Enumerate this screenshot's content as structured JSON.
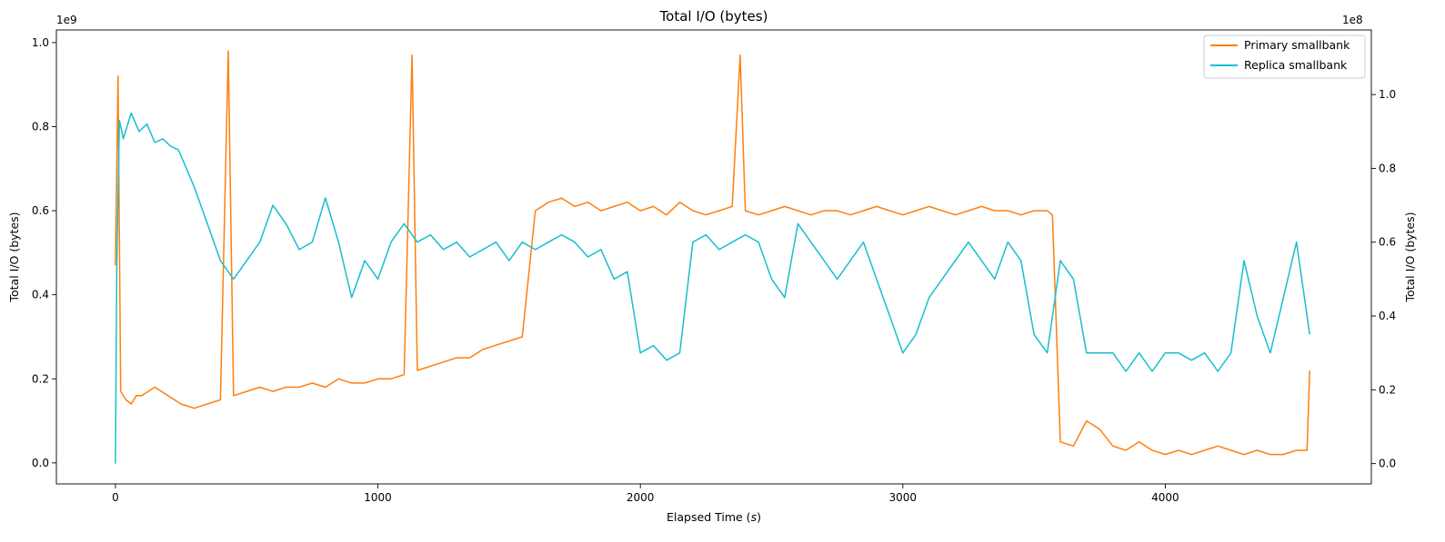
{
  "chart_data": {
    "type": "line",
    "title": "Total I/O (bytes)",
    "xlabel": "Elapsed Time (s)",
    "ylabel_left": "Total I/O (bytes)",
    "ylabel_right": "Total I/O (bytes)",
    "left_scale_label": "1e9",
    "right_scale_label": "1e8",
    "xlim": [
      -225,
      4785
    ],
    "ylim_left": [
      -0.05,
      1.03
    ],
    "ylim_right": [
      -0.055,
      1.175
    ],
    "x_ticks": [
      0,
      1000,
      2000,
      3000,
      4000
    ],
    "x_tick_labels": [
      "0",
      "1000",
      "2000",
      "3000",
      "4000"
    ],
    "left_ticks": [
      0.0,
      0.2,
      0.4,
      0.6,
      0.8,
      1.0
    ],
    "left_tick_labels": [
      "0.0",
      "0.2",
      "0.4",
      "0.6",
      "0.8",
      "1.0"
    ],
    "right_ticks": [
      0.0,
      0.2,
      0.4,
      0.6,
      0.8,
      1.0
    ],
    "right_tick_labels": [
      "0.0",
      "0.2",
      "0.4",
      "0.6",
      "0.8",
      "1.0"
    ],
    "legend_position": "top-right",
    "grid": false,
    "series": [
      {
        "name": "Primary smallbank",
        "axis": "left",
        "color": "#ff7f0e",
        "x": [
          0,
          10,
          20,
          40,
          60,
          80,
          100,
          150,
          200,
          250,
          300,
          350,
          400,
          430,
          450,
          500,
          550,
          600,
          650,
          700,
          750,
          800,
          850,
          900,
          950,
          1000,
          1050,
          1100,
          1130,
          1150,
          1200,
          1250,
          1300,
          1350,
          1400,
          1450,
          1500,
          1550,
          1600,
          1650,
          1700,
          1750,
          1800,
          1850,
          1900,
          1950,
          2000,
          2050,
          2100,
          2150,
          2200,
          2250,
          2300,
          2350,
          2380,
          2400,
          2450,
          2500,
          2550,
          2600,
          2650,
          2700,
          2750,
          2800,
          2850,
          2900,
          2950,
          3000,
          3050,
          3100,
          3150,
          3200,
          3250,
          3300,
          3350,
          3400,
          3450,
          3500,
          3550,
          3570,
          3600,
          3650,
          3700,
          3750,
          3800,
          3850,
          3900,
          3950,
          4000,
          4050,
          4100,
          4150,
          4200,
          4250,
          4300,
          4350,
          4400,
          4450,
          4500,
          4540,
          4550
        ],
        "y": [
          0.47,
          0.92,
          0.17,
          0.15,
          0.14,
          0.16,
          0.16,
          0.18,
          0.16,
          0.14,
          0.13,
          0.14,
          0.15,
          0.98,
          0.16,
          0.17,
          0.18,
          0.17,
          0.18,
          0.18,
          0.19,
          0.18,
          0.2,
          0.19,
          0.19,
          0.2,
          0.2,
          0.21,
          0.97,
          0.22,
          0.23,
          0.24,
          0.25,
          0.25,
          0.27,
          0.28,
          0.29,
          0.3,
          0.6,
          0.62,
          0.63,
          0.61,
          0.62,
          0.6,
          0.61,
          0.62,
          0.6,
          0.61,
          0.59,
          0.62,
          0.6,
          0.59,
          0.6,
          0.61,
          0.97,
          0.6,
          0.59,
          0.6,
          0.61,
          0.6,
          0.59,
          0.6,
          0.6,
          0.59,
          0.6,
          0.61,
          0.6,
          0.59,
          0.6,
          0.61,
          0.6,
          0.59,
          0.6,
          0.61,
          0.6,
          0.6,
          0.59,
          0.6,
          0.6,
          0.59,
          0.05,
          0.04,
          0.1,
          0.08,
          0.04,
          0.03,
          0.05,
          0.03,
          0.02,
          0.03,
          0.02,
          0.03,
          0.04,
          0.03,
          0.02,
          0.03,
          0.02,
          0.02,
          0.03,
          0.03,
          0.22
        ]
      },
      {
        "name": "Replica smallbank",
        "axis": "right",
        "color": "#17becf",
        "x": [
          0,
          5,
          15,
          30,
          60,
          90,
          120,
          150,
          180,
          210,
          240,
          270,
          300,
          350,
          400,
          450,
          500,
          550,
          600,
          650,
          700,
          750,
          800,
          850,
          900,
          950,
          1000,
          1050,
          1100,
          1150,
          1200,
          1250,
          1300,
          1350,
          1400,
          1450,
          1500,
          1550,
          1600,
          1650,
          1700,
          1750,
          1800,
          1850,
          1900,
          1950,
          2000,
          2050,
          2100,
          2150,
          2200,
          2250,
          2300,
          2350,
          2400,
          2450,
          2500,
          2550,
          2600,
          2650,
          2700,
          2750,
          2800,
          2850,
          2900,
          2950,
          3000,
          3050,
          3100,
          3150,
          3200,
          3250,
          3300,
          3350,
          3400,
          3450,
          3500,
          3550,
          3600,
          3650,
          3700,
          3750,
          3800,
          3850,
          3900,
          3950,
          4000,
          4050,
          4100,
          4150,
          4200,
          4250,
          4300,
          4350,
          4400,
          4450,
          4500,
          4550
        ],
        "y": [
          0.0,
          0.53,
          0.93,
          0.88,
          0.95,
          0.9,
          0.92,
          0.87,
          0.88,
          0.86,
          0.85,
          0.8,
          0.75,
          0.65,
          0.55,
          0.5,
          0.55,
          0.6,
          0.7,
          0.65,
          0.58,
          0.6,
          0.72,
          0.6,
          0.45,
          0.55,
          0.5,
          0.6,
          0.65,
          0.6,
          0.62,
          0.58,
          0.6,
          0.56,
          0.58,
          0.6,
          0.55,
          0.6,
          0.58,
          0.6,
          0.62,
          0.6,
          0.56,
          0.58,
          0.5,
          0.52,
          0.3,
          0.32,
          0.28,
          0.3,
          0.6,
          0.62,
          0.58,
          0.6,
          0.62,
          0.6,
          0.5,
          0.45,
          0.65,
          0.6,
          0.55,
          0.5,
          0.55,
          0.6,
          0.5,
          0.4,
          0.3,
          0.35,
          0.45,
          0.5,
          0.55,
          0.6,
          0.55,
          0.5,
          0.6,
          0.55,
          0.35,
          0.3,
          0.55,
          0.5,
          0.3,
          0.3,
          0.3,
          0.25,
          0.3,
          0.25,
          0.3,
          0.3,
          0.28,
          0.3,
          0.25,
          0.3,
          0.55,
          0.4,
          0.3,
          0.45,
          0.6,
          0.35
        ]
      }
    ]
  }
}
